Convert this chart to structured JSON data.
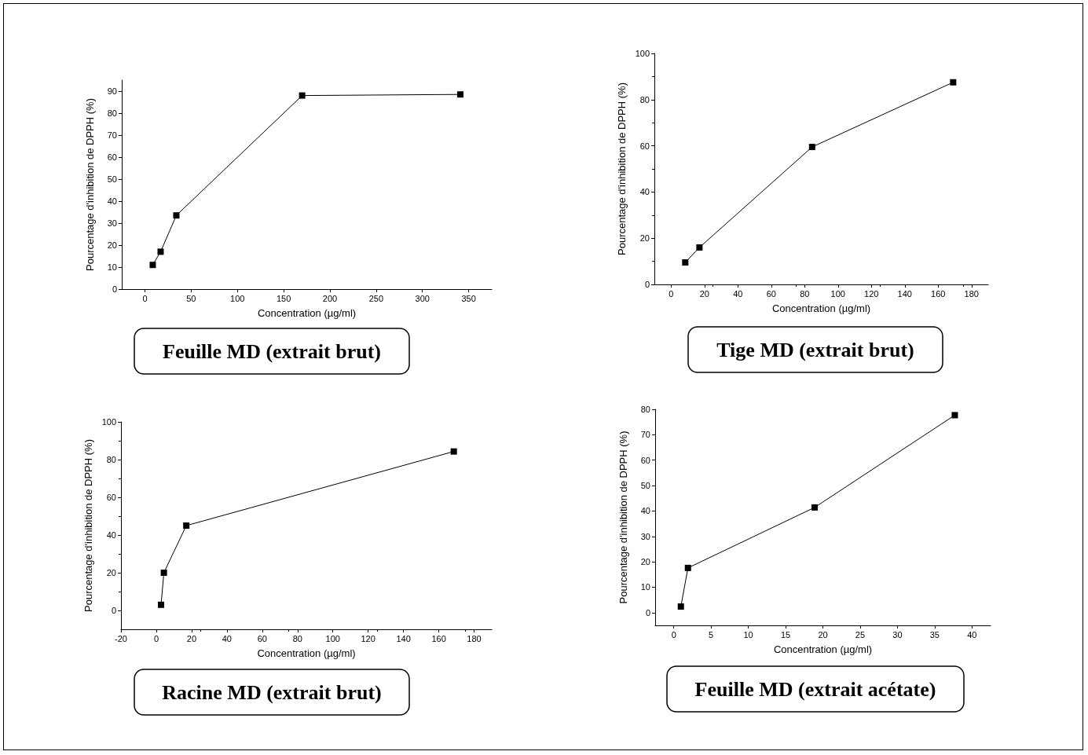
{
  "chart_data": [
    {
      "type": "line",
      "title": "Feuille MD (extrait brut)",
      "xlabel": "Concentration (µg/ml)",
      "ylabel": "Pourcentage d'inhibition de DPPH (%)",
      "x": [
        8.5,
        17,
        34,
        170,
        341
      ],
      "series": [
        {
          "color": "#000000",
          "values": [
            11,
            17,
            33.5,
            88,
            88.5
          ]
        }
      ],
      "xlim": [
        -25,
        375
      ],
      "xticks": [
        0,
        50,
        100,
        150,
        200,
        250,
        300,
        350
      ],
      "ylim": [
        0,
        95
      ],
      "yticks": [
        0,
        10,
        20,
        30,
        40,
        50,
        60,
        70,
        80,
        90
      ],
      "marker": "square",
      "line_style": "solid"
    },
    {
      "type": "line",
      "title": "Tige MD (extrait brut)",
      "xlabel": "Concentration (µg/ml)",
      "ylabel": "Pourcentage d'inhibition de DPPH (%)",
      "x": [
        8.5,
        17,
        84.5,
        169
      ],
      "series": [
        {
          "color": "#000000",
          "values": [
            9.5,
            16,
            59.5,
            87.5
          ]
        }
      ],
      "xlim": [
        -10,
        190
      ],
      "xticks": [
        0,
        20,
        40,
        60,
        80,
        100,
        120,
        140,
        160,
        180
      ],
      "ylim": [
        0,
        100
      ],
      "yticks": [
        0,
        20,
        40,
        60,
        80,
        100
      ],
      "marker": "square",
      "line_style": "solid"
    },
    {
      "type": "line",
      "title": "Racine MD (extrait brut)",
      "xlabel": "Concentration (µg/ml)",
      "ylabel": "Pourcentage d'inhibition de DPPH (%)",
      "x": [
        2.7,
        4.3,
        17,
        168.5
      ],
      "series": [
        {
          "color": "#000000",
          "values": [
            3,
            20,
            45,
            84.3
          ]
        }
      ],
      "xlim": [
        -20,
        190
      ],
      "xticks": [
        -20,
        0,
        20,
        40,
        60,
        80,
        100,
        120,
        140,
        160,
        180
      ],
      "ylim": [
        -10,
        100
      ],
      "yticks": [
        0,
        20,
        40,
        60,
        80,
        100
      ],
      "marker": "square",
      "line_style": "solid"
    },
    {
      "type": "line",
      "title": "Feuille MD (extrait acétate)",
      "xlabel": "Concentration (µg/ml)",
      "ylabel": "Pourcentage d'inhibition de DPPH (%)",
      "x": [
        0.95,
        1.9,
        18.9,
        37.7
      ],
      "series": [
        {
          "color": "#000000",
          "values": [
            2.4,
            17.6,
            41.4,
            77.7
          ]
        }
      ],
      "xlim": [
        -2.5,
        42.5
      ],
      "xticks": [
        0,
        5,
        10,
        15,
        20,
        25,
        30,
        35,
        40
      ],
      "ylim": [
        -5,
        80
      ],
      "yticks": [
        0,
        10,
        20,
        30,
        40,
        50,
        60,
        70,
        80
      ],
      "marker": "square",
      "line_style": "solid"
    }
  ]
}
